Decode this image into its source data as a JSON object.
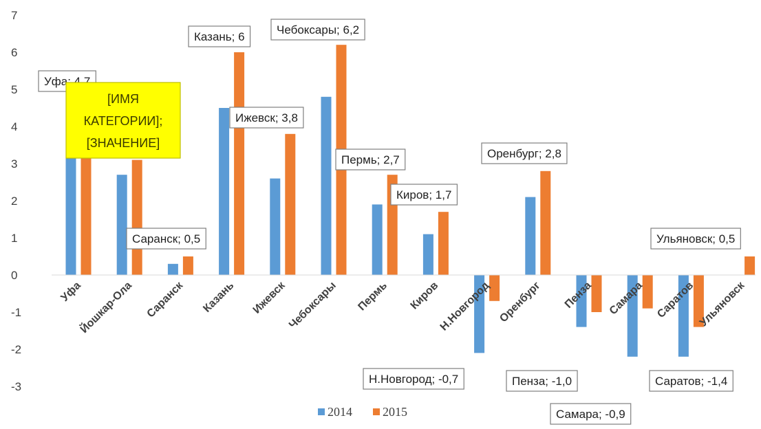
{
  "chart_data": {
    "type": "bar",
    "categories": [
      "Уфа",
      "Йошкар-Ола",
      "Саранск",
      "Казань",
      "Ижевск",
      "Чебоксары",
      "Пермь",
      "Киров",
      "Н.Новгород",
      "Оренбург",
      "Пенза",
      "Самара",
      "Саратов",
      "Ульяновск"
    ],
    "series": [
      {
        "name": "2014",
        "color": "#5b9bd5",
        "values": [
          4.8,
          2.7,
          0.3,
          4.5,
          2.6,
          4.8,
          1.9,
          1.1,
          -2.1,
          2.1,
          -1.4,
          -2.2,
          -2.2,
          null
        ]
      },
      {
        "name": "2015",
        "color": "#ed7d31",
        "values": [
          4.7,
          3.1,
          0.5,
          6.0,
          3.8,
          6.2,
          2.7,
          1.7,
          -0.7,
          2.8,
          -1.0,
          -0.9,
          -1.4,
          0.5
        ]
      }
    ],
    "ylim": [
      -3,
      7
    ],
    "yticks": [
      "-3",
      "-2",
      "-1",
      "0",
      "1",
      "2",
      "3",
      "4",
      "5",
      "6",
      "7"
    ],
    "grid": false,
    "legend": "bottom",
    "data_labels": [
      {
        "category": "Уфа",
        "text": "Уфа; 4,7"
      },
      {
        "category": "Йошкар-Ола",
        "text": "[ИМЯ КАТЕГОРИИ]; [ЗНАЧЕНИЕ]",
        "lines": [
          "[ИМЯ",
          "КАТЕГОРИИ];",
          "[ЗНАЧЕНИЕ]"
        ],
        "highlight": "#ffff00"
      },
      {
        "category": "Саранск",
        "text": "Саранск; 0,5"
      },
      {
        "category": "Казань",
        "text": "Казань; 6"
      },
      {
        "category": "Ижевск",
        "text": "Ижевск; 3,8"
      },
      {
        "category": "Чебоксары",
        "text": "Чебоксары; 6,2"
      },
      {
        "category": "Пермь",
        "text": "Пермь; 2,7"
      },
      {
        "category": "Киров",
        "text": "Киров; 1,7"
      },
      {
        "category": "Н.Новгород",
        "text": "Н.Новгород; -0,7"
      },
      {
        "category": "Оренбург",
        "text": "Оренбург; 2,8"
      },
      {
        "category": "Пенза",
        "text": "Пенза; -1,0"
      },
      {
        "category": "Самара",
        "text": "Самара; -0,9"
      },
      {
        "category": "Саратов",
        "text": "Саратов; -1,4"
      },
      {
        "category": "Ульяновск",
        "text": "Ульяновск; 0,5"
      }
    ]
  }
}
